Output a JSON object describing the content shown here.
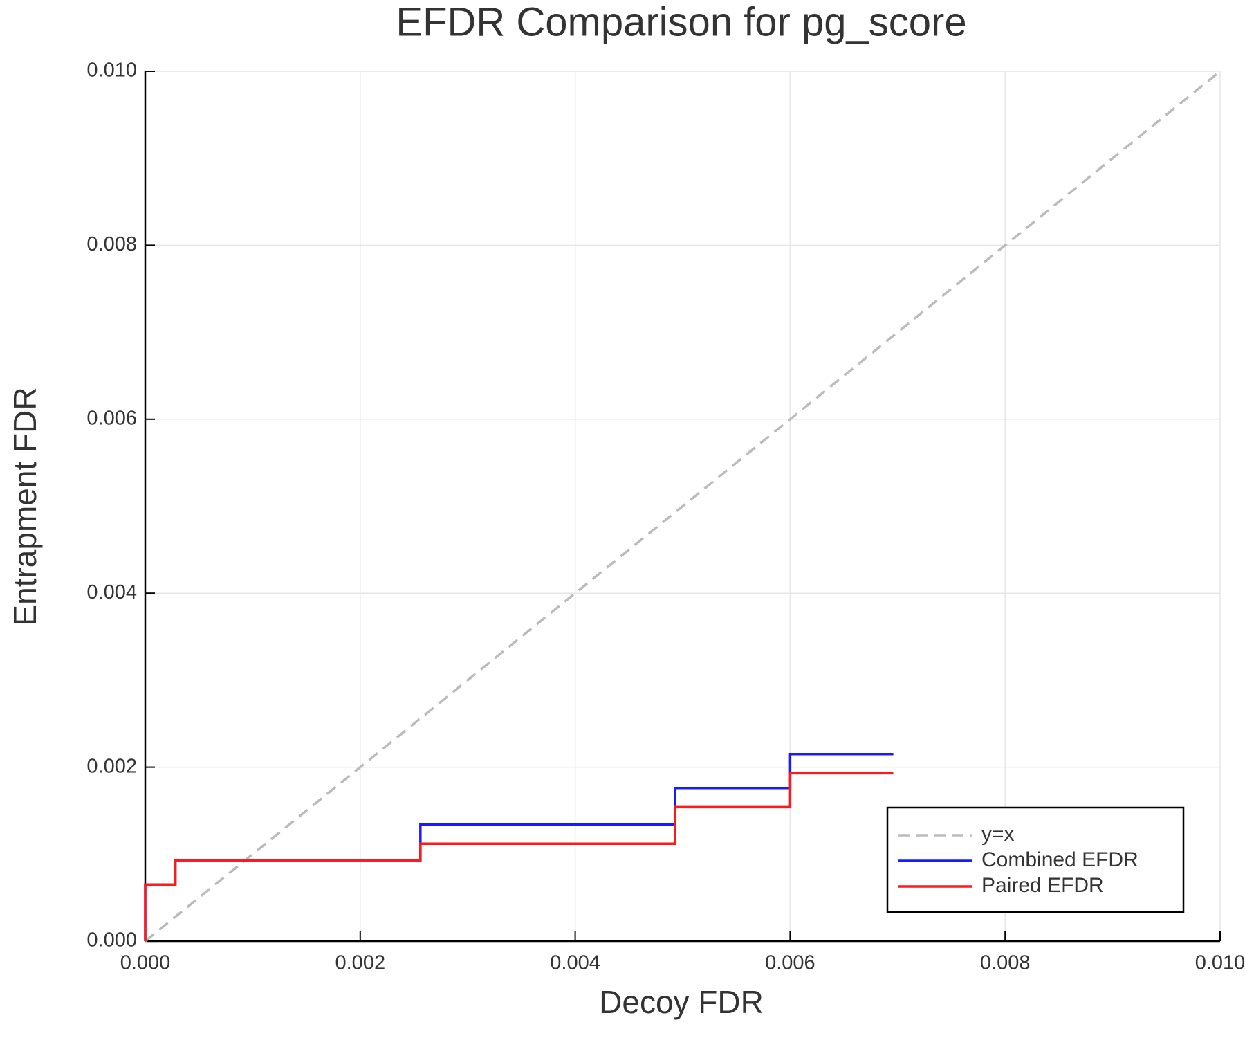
{
  "chart_data": {
    "type": "line",
    "title": "EFDR Comparison for pg_score",
    "x_label": "Decoy FDR",
    "y_label": "Entrapment FDR",
    "xlim": [
      0,
      0.01
    ],
    "ylim": [
      0,
      0.01
    ],
    "xticks": [
      {
        "value": 0,
        "label": "0.000"
      },
      {
        "value": 0.002,
        "label": "0.002"
      },
      {
        "value": 0.004,
        "label": "0.004"
      },
      {
        "value": 0.006,
        "label": "0.006"
      },
      {
        "value": 0.008,
        "label": "0.008"
      },
      {
        "value": 0.01,
        "label": "0.010"
      }
    ],
    "yticks": [
      {
        "value": 0,
        "label": "0.000"
      },
      {
        "value": 0.002,
        "label": "0.002"
      },
      {
        "value": 0.004,
        "label": "0.004"
      },
      {
        "value": 0.006,
        "label": "0.006"
      },
      {
        "value": 0.008,
        "label": "0.008"
      },
      {
        "value": 0.01,
        "label": "0.010"
      }
    ],
    "grid": true,
    "legend": "lower right",
    "series": [
      {
        "name": "y=x",
        "color": "#bbbbbb",
        "style": "dashed",
        "x": [
          0,
          0.01
        ],
        "values": [
          0,
          0.01
        ]
      },
      {
        "name": "Combined EFDR",
        "color": "#1a1aff",
        "style": "solid",
        "x": [
          0,
          0,
          0.00028,
          0.00028,
          0.00256,
          0.00256,
          0.00493,
          0.00493,
          0.006,
          0.006,
          0.00696
        ],
        "values": [
          0,
          0.00065,
          0.00065,
          0.00093,
          0.00093,
          0.00134,
          0.00134,
          0.00176,
          0.00176,
          0.00215,
          0.00215
        ]
      },
      {
        "name": "Paired EFDR",
        "color": "#ff1a1a",
        "style": "solid",
        "x": [
          0,
          0,
          0.00028,
          0.00028,
          0.00256,
          0.00256,
          0.00493,
          0.00493,
          0.006,
          0.006,
          0.00696
        ],
        "values": [
          0,
          0.00065,
          0.00065,
          0.00093,
          0.00093,
          0.00112,
          0.00112,
          0.00154,
          0.00154,
          0.00193,
          0.00193
        ]
      }
    ]
  }
}
